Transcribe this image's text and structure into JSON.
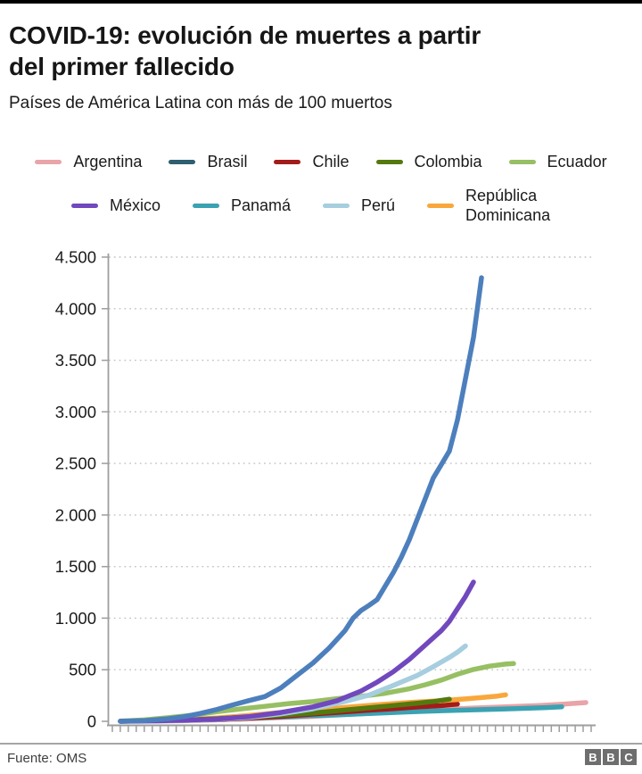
{
  "header": {
    "title_line1": "COVID-19: evolución de muertes a partir",
    "title_line2": "del primer fallecido",
    "subtitle": "Países de América Latina con más de 100 muertos"
  },
  "chart_data": {
    "type": "line",
    "title": "COVID-19: evolución de muertes a partir del primer fallecido",
    "subtitle": "Países de América Latina con más de 100 muertos",
    "xlabel": "",
    "ylabel": "",
    "x_axis": {
      "tick_count": 61,
      "labels_visible": false
    },
    "y_axis": {
      "min": 0,
      "max": 4500,
      "ticks": [
        {
          "value": 0,
          "label": "0"
        },
        {
          "value": 500,
          "label": "500"
        },
        {
          "value": 1000,
          "label": "1.000"
        },
        {
          "value": 1500,
          "label": "1.500"
        },
        {
          "value": 2000,
          "label": "2.000"
        },
        {
          "value": 2500,
          "label": "2.500"
        },
        {
          "value": 3000,
          "label": "3.000"
        },
        {
          "value": 3500,
          "label": "3.500"
        },
        {
          "value": 4000,
          "label": "4.000"
        },
        {
          "value": 4500,
          "label": "4.500"
        }
      ]
    },
    "grid": {
      "style": "dotted",
      "color": "#c4c4c4"
    },
    "legend_rows": [
      5,
      4
    ],
    "draw_order": [
      "Argentina",
      "Panamá",
      "Chile",
      "República Dominicana",
      "Colombia",
      "Ecuador",
      "Perú",
      "México",
      "Brasil"
    ],
    "series": [
      {
        "name": "Argentina",
        "color": "#e8a4a8",
        "points": [
          [
            0,
            1
          ],
          [
            4,
            2
          ],
          [
            8,
            6
          ],
          [
            12,
            14
          ],
          [
            16,
            24
          ],
          [
            20,
            36
          ],
          [
            24,
            48
          ],
          [
            28,
            65
          ],
          [
            32,
            83
          ],
          [
            36,
            100
          ],
          [
            40,
            115
          ],
          [
            44,
            129
          ],
          [
            48,
            140
          ],
          [
            52,
            152
          ],
          [
            55,
            165
          ],
          [
            58,
            182
          ]
        ]
      },
      {
        "name": "Brasil",
        "color": "#4d7fbd",
        "legend_color": "#2e5e70",
        "points": [
          [
            0,
            1
          ],
          [
            3,
            7
          ],
          [
            6,
            25
          ],
          [
            8,
            46
          ],
          [
            10,
            77
          ],
          [
            12,
            114
          ],
          [
            14,
            159
          ],
          [
            16,
            201
          ],
          [
            18,
            240
          ],
          [
            20,
            324
          ],
          [
            22,
            445
          ],
          [
            24,
            565
          ],
          [
            26,
            710
          ],
          [
            28,
            880
          ],
          [
            29,
            1000
          ],
          [
            30,
            1075
          ],
          [
            31,
            1125
          ],
          [
            32,
            1180
          ],
          [
            33,
            1310
          ],
          [
            34,
            1440
          ],
          [
            35,
            1590
          ],
          [
            36,
            1760
          ],
          [
            37,
            1960
          ],
          [
            38,
            2160
          ],
          [
            39,
            2360
          ],
          [
            40,
            2490
          ],
          [
            41,
            2620
          ],
          [
            42,
            2920
          ],
          [
            43,
            3320
          ],
          [
            44,
            3720
          ],
          [
            45,
            4300
          ]
        ]
      },
      {
        "name": "Chile",
        "color": "#a31b1b",
        "points": [
          [
            0,
            1
          ],
          [
            4,
            4
          ],
          [
            8,
            10
          ],
          [
            12,
            18
          ],
          [
            16,
            32
          ],
          [
            20,
            48
          ],
          [
            24,
            70
          ],
          [
            28,
            92
          ],
          [
            31,
            108
          ],
          [
            34,
            122
          ],
          [
            37,
            139
          ],
          [
            40,
            152
          ],
          [
            42,
            168
          ]
        ]
      },
      {
        "name": "Colombia",
        "color": "#53790f",
        "points": [
          [
            0,
            1
          ],
          [
            4,
            4
          ],
          [
            8,
            12
          ],
          [
            12,
            25
          ],
          [
            16,
            42
          ],
          [
            20,
            60
          ],
          [
            24,
            80
          ],
          [
            28,
            109
          ],
          [
            31,
            131
          ],
          [
            34,
            153
          ],
          [
            37,
            175
          ],
          [
            39,
            192
          ],
          [
            41,
            215
          ]
        ]
      },
      {
        "name": "Ecuador",
        "color": "#97bf63",
        "points": [
          [
            0,
            2
          ],
          [
            3,
            14
          ],
          [
            6,
            36
          ],
          [
            9,
            60
          ],
          [
            12,
            93
          ],
          [
            15,
            120
          ],
          [
            18,
            145
          ],
          [
            21,
            172
          ],
          [
            24,
            191
          ],
          [
            27,
            220
          ],
          [
            30,
            242
          ],
          [
            33,
            272
          ],
          [
            36,
            315
          ],
          [
            38,
            355
          ],
          [
            40,
            400
          ],
          [
            42,
            456
          ],
          [
            44,
            503
          ],
          [
            46,
            535
          ],
          [
            48,
            555
          ],
          [
            49,
            560
          ]
        ]
      },
      {
        "name": "México",
        "color": "#7148bd",
        "points": [
          [
            0,
            1
          ],
          [
            4,
            4
          ],
          [
            8,
            10
          ],
          [
            12,
            22
          ],
          [
            16,
            45
          ],
          [
            20,
            86
          ],
          [
            24,
            140
          ],
          [
            27,
            200
          ],
          [
            30,
            294
          ],
          [
            32,
            380
          ],
          [
            34,
            480
          ],
          [
            36,
            600
          ],
          [
            38,
            740
          ],
          [
            40,
            880
          ],
          [
            41,
            970
          ],
          [
            42,
            1090
          ],
          [
            43,
            1210
          ],
          [
            44,
            1350
          ]
        ]
      },
      {
        "name": "Panamá",
        "color": "#3aa2b2",
        "points": [
          [
            0,
            1
          ],
          [
            4,
            4
          ],
          [
            8,
            9
          ],
          [
            12,
            17
          ],
          [
            16,
            30
          ],
          [
            20,
            41
          ],
          [
            24,
            55
          ],
          [
            28,
            66
          ],
          [
            32,
            79
          ],
          [
            36,
            92
          ],
          [
            40,
            103
          ],
          [
            44,
            112
          ],
          [
            48,
            120
          ],
          [
            51,
            127
          ],
          [
            53,
            133
          ],
          [
            55,
            141
          ]
        ]
      },
      {
        "name": "Perú",
        "color": "#a6cede",
        "points": [
          [
            0,
            1
          ],
          [
            4,
            3
          ],
          [
            8,
            9
          ],
          [
            12,
            20
          ],
          [
            16,
            38
          ],
          [
            20,
            73
          ],
          [
            24,
            121
          ],
          [
            28,
            193
          ],
          [
            31,
            254
          ],
          [
            34,
            348
          ],
          [
            37,
            445
          ],
          [
            39,
            530
          ],
          [
            41,
            620
          ],
          [
            42,
            670
          ],
          [
            43,
            730
          ]
        ]
      },
      {
        "name": "República Dominicana",
        "color": "#f9a73c",
        "points": [
          [
            0,
            2
          ],
          [
            4,
            6
          ],
          [
            8,
            16
          ],
          [
            12,
            33
          ],
          [
            16,
            57
          ],
          [
            20,
            86
          ],
          [
            24,
            108
          ],
          [
            28,
            135
          ],
          [
            32,
            160
          ],
          [
            36,
            183
          ],
          [
            40,
            200
          ],
          [
            43,
            217
          ],
          [
            45,
            230
          ],
          [
            47,
            245
          ],
          [
            48,
            257
          ]
        ]
      }
    ]
  },
  "footer": {
    "source": "Fuente: OMS",
    "logo_letters": [
      "B",
      "B",
      "C"
    ]
  },
  "colors": {
    "top_bar": "#000000",
    "axis": "#9e9e9e",
    "grid": "#c4c4c4",
    "text": "#1a1a1a",
    "footer_divider": "#a6a6a6",
    "footer_text": "#3f3f3f",
    "bbc_box": "#6e6e6e"
  }
}
